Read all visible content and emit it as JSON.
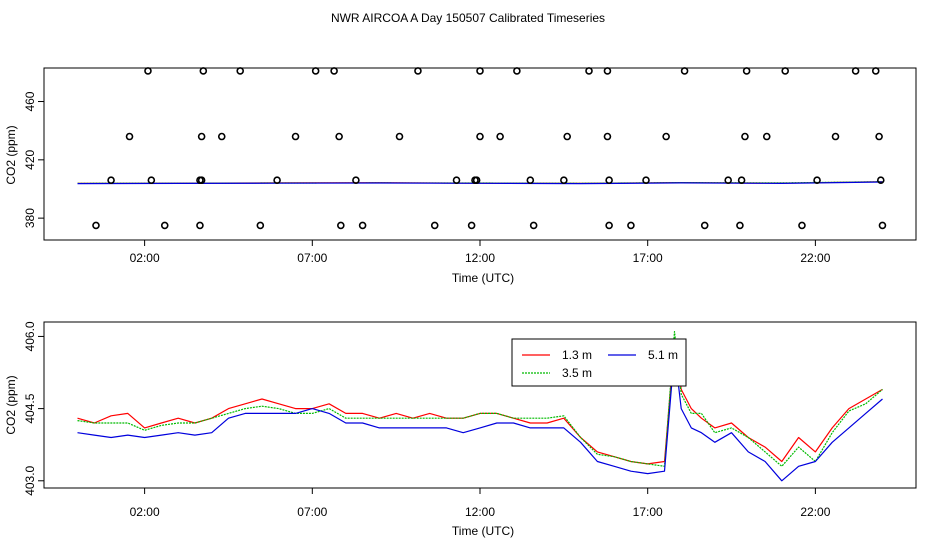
{
  "title": "NWR AIRCOA A  Day 150507  Calibrated Timeseries",
  "chart_data": [
    {
      "type": "scatter",
      "title": "",
      "xlabel": "Time (UTC)",
      "ylabel": "CO2 (ppm)",
      "xlim": [
        -1.0,
        25.0
      ],
      "ylim": [
        365,
        483
      ],
      "xticks": [
        2,
        7,
        12,
        17,
        22
      ],
      "xtick_labels": [
        "02:00",
        "07:00",
        "12:00",
        "17:00",
        "22:00"
      ],
      "yticks": [
        380,
        420,
        460
      ],
      "ytick_labels": [
        "380",
        "420",
        "460"
      ],
      "markers": {
        "y": [
          375,
          406,
          436,
          481
        ],
        "times": [
          [
            0.55,
            2.6,
            3.65,
            5.45,
            7.85,
            8.5,
            10.65,
            11.75,
            13.6,
            15.85,
            16.5,
            18.7,
            19.75,
            21.6,
            24.0
          ],
          [
            1.0,
            2.2,
            3.65,
            3.7,
            5.95,
            8.3,
            11.3,
            11.85,
            11.9,
            13.5,
            14.5,
            15.85,
            16.95,
            19.4,
            19.8,
            22.05,
            23.95
          ],
          [
            1.55,
            3.7,
            4.3,
            6.5,
            7.8,
            9.6,
            12.0,
            12.6,
            14.6,
            15.8,
            17.55,
            19.9,
            20.55,
            22.6,
            23.9
          ],
          [
            2.1,
            3.75,
            4.85,
            7.1,
            7.65,
            10.15,
            12.0,
            13.1,
            15.25,
            15.8,
            18.1,
            19.95,
            21.1,
            23.2,
            23.8
          ]
        ]
      },
      "series": [
        {
          "name": "1.3 m",
          "color": "#ff0000",
          "x": [
            0.0,
            3.0,
            6.0,
            9.0,
            12.0,
            15.0,
            18.0,
            21.0,
            24.0
          ],
          "y": [
            403.8,
            404.0,
            404.2,
            404.3,
            404.0,
            403.9,
            404.4,
            404.0,
            405.0
          ]
        },
        {
          "name": "3.5 m",
          "color": "#00bb00",
          "x": [
            0.0,
            3.0,
            6.0,
            9.0,
            12.0,
            15.0,
            18.0,
            21.0,
            24.0
          ],
          "y": [
            403.9,
            404.0,
            404.1,
            404.2,
            404.1,
            403.9,
            404.4,
            404.2,
            405.0
          ]
        },
        {
          "name": "5.1 m",
          "color": "#0000dd",
          "x": [
            0.0,
            3.0,
            6.0,
            9.0,
            12.0,
            15.0,
            18.0,
            21.0,
            24.0
          ],
          "y": [
            403.7,
            403.8,
            404.0,
            404.1,
            403.9,
            403.7,
            404.2,
            403.8,
            404.8
          ]
        }
      ]
    },
    {
      "type": "line",
      "title": "",
      "xlabel": "Time (UTC)",
      "ylabel": "CO2 (ppm)",
      "xlim": [
        -1.0,
        25.0
      ],
      "ylim": [
        402.85,
        406.3
      ],
      "xticks": [
        2,
        7,
        12,
        17,
        22
      ],
      "xtick_labels": [
        "02:00",
        "07:00",
        "12:00",
        "17:00",
        "22:00"
      ],
      "yticks": [
        403.0,
        404.5,
        406.0
      ],
      "ytick_labels": [
        "403.0",
        "404.5",
        "406.0"
      ],
      "legend": {
        "position": "top-center",
        "ncol": 2
      },
      "series": [
        {
          "name": "1.3 m",
          "color": "#ff0000",
          "x": [
            0.0,
            0.5,
            1.0,
            1.5,
            2.0,
            2.5,
            3.0,
            3.5,
            4.0,
            4.5,
            5.0,
            5.5,
            6.0,
            6.5,
            7.0,
            7.5,
            8.0,
            8.5,
            9.0,
            9.5,
            10.0,
            10.5,
            11.0,
            11.5,
            12.0,
            12.5,
            13.0,
            13.5,
            14.0,
            14.5,
            15.0,
            15.5,
            16.0,
            16.5,
            17.0,
            17.5,
            17.8,
            18.0,
            18.3,
            18.6,
            19.0,
            19.5,
            20.0,
            20.5,
            21.0,
            21.5,
            22.0,
            22.5,
            23.0,
            23.5,
            24.0
          ],
          "y": [
            404.3,
            404.2,
            404.35,
            404.4,
            404.1,
            404.2,
            404.3,
            404.2,
            404.3,
            404.5,
            404.6,
            404.7,
            404.6,
            404.5,
            404.5,
            404.6,
            404.4,
            404.4,
            404.3,
            404.4,
            404.3,
            404.4,
            404.3,
            404.3,
            404.4,
            404.4,
            404.3,
            404.2,
            404.2,
            404.3,
            403.9,
            403.6,
            403.5,
            403.4,
            403.35,
            403.4,
            405.9,
            404.9,
            404.5,
            404.3,
            404.1,
            404.2,
            403.9,
            403.7,
            403.4,
            403.9,
            403.6,
            404.1,
            404.5,
            404.7,
            404.9
          ]
        },
        {
          "name": "3.5 m",
          "color": "#00bb00",
          "x": [
            0.0,
            0.5,
            1.0,
            1.5,
            2.0,
            2.5,
            3.0,
            3.5,
            4.0,
            4.5,
            5.0,
            5.5,
            6.0,
            6.5,
            7.0,
            7.5,
            8.0,
            8.5,
            9.0,
            9.5,
            10.0,
            10.5,
            11.0,
            11.5,
            12.0,
            12.5,
            13.0,
            13.5,
            14.0,
            14.5,
            15.0,
            15.5,
            16.0,
            16.5,
            17.0,
            17.5,
            17.8,
            18.0,
            18.3,
            18.6,
            19.0,
            19.5,
            20.0,
            20.5,
            21.0,
            21.5,
            22.0,
            22.5,
            23.0,
            23.5,
            24.0
          ],
          "y": [
            404.25,
            404.2,
            404.2,
            404.2,
            404.05,
            404.15,
            404.2,
            404.2,
            404.3,
            404.4,
            404.5,
            404.55,
            404.5,
            404.4,
            404.4,
            404.5,
            404.3,
            404.3,
            404.3,
            404.3,
            404.3,
            404.3,
            404.3,
            404.3,
            404.4,
            404.4,
            404.3,
            404.3,
            404.3,
            404.35,
            403.9,
            403.55,
            403.5,
            403.4,
            403.35,
            403.3,
            406.1,
            404.8,
            404.4,
            404.4,
            404.0,
            404.1,
            403.9,
            403.6,
            403.3,
            403.7,
            403.4,
            404.0,
            404.45,
            404.6,
            404.9
          ]
        },
        {
          "name": "5.1 m",
          "color": "#0000dd",
          "x": [
            0.0,
            0.5,
            1.0,
            1.5,
            2.0,
            2.5,
            3.0,
            3.5,
            4.0,
            4.5,
            5.0,
            5.5,
            6.0,
            6.5,
            7.0,
            7.5,
            8.0,
            8.5,
            9.0,
            9.5,
            10.0,
            10.5,
            11.0,
            11.5,
            12.0,
            12.5,
            13.0,
            13.5,
            14.0,
            14.5,
            15.0,
            15.5,
            16.0,
            16.5,
            17.0,
            17.5,
            17.8,
            18.0,
            18.3,
            18.6,
            19.0,
            19.5,
            20.0,
            20.5,
            21.0,
            21.5,
            22.0,
            22.5,
            23.0,
            23.5,
            24.0
          ],
          "y": [
            404.0,
            403.95,
            403.9,
            403.95,
            403.9,
            403.95,
            404.0,
            403.95,
            404.0,
            404.3,
            404.4,
            404.4,
            404.4,
            404.4,
            404.5,
            404.4,
            404.2,
            404.2,
            404.1,
            404.1,
            404.1,
            404.1,
            404.1,
            404.0,
            404.1,
            404.2,
            404.2,
            404.1,
            404.1,
            404.1,
            403.8,
            403.4,
            403.3,
            403.2,
            403.15,
            403.2,
            405.7,
            404.5,
            404.1,
            404.0,
            403.8,
            404.0,
            403.6,
            403.4,
            403.0,
            403.3,
            403.4,
            403.8,
            404.1,
            404.4,
            404.7
          ]
        }
      ]
    }
  ]
}
